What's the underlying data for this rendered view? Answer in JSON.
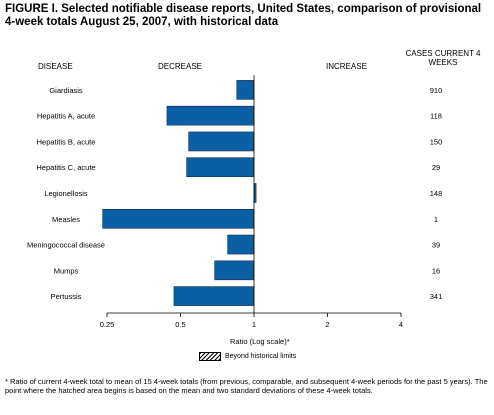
{
  "figure": {
    "title": "FIGURE I. Selected notifiable disease reports, United States, comparison of provisional 4-week totals August 25, 2007, with historical data",
    "col_disease": "DISEASE",
    "col_decrease": "DECREASE",
    "col_increase": "INCREASE",
    "col_cases": "CASES CURRENT 4 WEEKS",
    "legend_label": "Beyond historical limits",
    "footnote": "* Ratio of current 4-week total to mean of 15 4-week totals (from previous, comparable, and subsequent 4-week periods for the past 5 years). The point where the hatched area begins is based on the mean and two standard deviations of these 4-week totals."
  },
  "chart_data": {
    "type": "bar",
    "orientation": "horizontal",
    "xscale": "log2",
    "xlabel": "Ratio (Log scale)*",
    "xlim": [
      0.25,
      4
    ],
    "xticks": [
      "0.25",
      "0.5",
      "1",
      "2",
      "4"
    ],
    "bar_color": "#0b5fa5",
    "categories": [
      "Giardiasis",
      "Hepatitis A, acute",
      "Hepatitis B, acute",
      "Hepatitis C, acute",
      "Legionellosis",
      "Measles",
      "Meningococcal disease",
      "Mumps",
      "Pertussis"
    ],
    "values": [
      0.85,
      0.44,
      0.54,
      0.53,
      1.02,
      0.24,
      0.78,
      0.69,
      0.47
    ],
    "cases": [
      "910",
      "118",
      "150",
      "29",
      "148",
      "1",
      "39",
      "16",
      "341"
    ]
  }
}
